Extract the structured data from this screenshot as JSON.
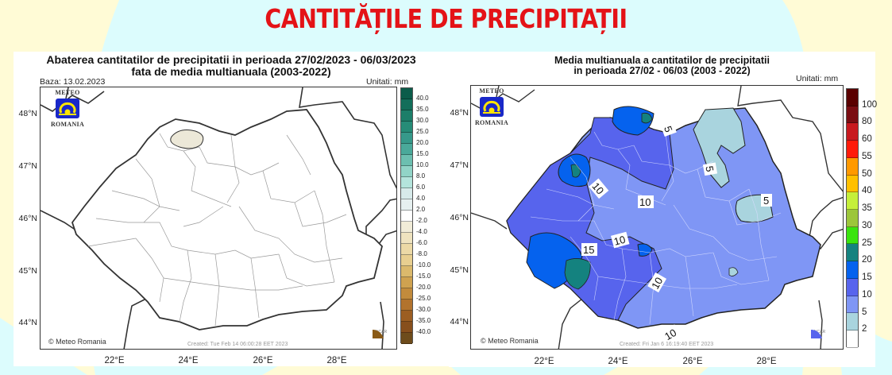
{
  "page": {
    "title": "CANTITĂȚILE DE PRECIPITAȚII",
    "colors": {
      "title": "#e41317",
      "background_cream": "#fffbd6",
      "background_cyan": "#dcfcfd"
    }
  },
  "left_map": {
    "title_line1": "Abaterea cantitatilor de precipitatii in perioada 27/02/2023 - 06/03/2023",
    "title_line2": "fata de media multianuala (2003-2022)",
    "base_label": "Baza: 13.02.2023",
    "units": "Unitati: mm",
    "logo_top": "METEO",
    "logo_bottom": "ROMANIA",
    "copyright": "© Meteo Romania",
    "created": "Created: Tue Feb 14 06:00:28 EET 2023",
    "ncar": "NCAR",
    "lat_labels": [
      "48°N",
      "47°N",
      "46°N",
      "45°N",
      "44°N"
    ],
    "lon_labels": [
      "22°E",
      "24°E",
      "26°E",
      "28°E"
    ],
    "colorbar": {
      "labels": [
        "40.0",
        "35.0",
        "30.0",
        "25.0",
        "20.0",
        "15.0",
        "10.0",
        "8.0",
        "6.0",
        "4.0",
        "2.0",
        "-2.0",
        "-4.0",
        "-6.0",
        "-8.0",
        "-10.0",
        "-15.0",
        "-20.0",
        "-25.0",
        "-30.0",
        "-35.0",
        "-40.0"
      ],
      "colors": [
        "#0b5c4a",
        "#136e5a",
        "#1c7e69",
        "#268c77",
        "#36998a",
        "#4aa99a",
        "#6cbfb0",
        "#91d4c7",
        "#b4e4dc",
        "#d7eaea",
        "#e6f0f0",
        "#ffffff",
        "#f1ecd8",
        "#efe3bf",
        "#ecd9a6",
        "#e8cf90",
        "#dbb96c",
        "#cfa250",
        "#c28b3c",
        "#b2732d",
        "#9c5e22",
        "#874f1c",
        "#6e4c1b"
      ]
    }
  },
  "right_map": {
    "title_line1": "Media multianuala a cantitatilor de precipitatii",
    "title_line2": "in perioada 27/02 - 06/03 (2003 - 2022)",
    "units": "Unitati: mm",
    "logo_top": "METEO",
    "logo_bottom": "ROMANIA",
    "copyright": "© Meteo Romania",
    "created": "Created: Fri Jan  6 16:19:40 EET 2023",
    "ncar": "NCAR",
    "lat_labels": [
      "48°N",
      "47°N",
      "46°N",
      "45°N",
      "44°N"
    ],
    "lon_labels": [
      "22°E",
      "24°E",
      "26°E",
      "28°E"
    ],
    "contour_labels": [
      "5",
      "5",
      "5",
      "10",
      "10",
      "10",
      "15",
      "10",
      "10"
    ],
    "colorbar": {
      "labels": [
        "100",
        "80",
        "60",
        "55",
        "50",
        "40",
        "35",
        "30",
        "25",
        "20",
        "15",
        "10",
        "5",
        "2"
      ],
      "colors": [
        "#5a0000",
        "#7a0d12",
        "#c8191f",
        "#ff1a0a",
        "#ff9900",
        "#ffc000",
        "#c5ef3a",
        "#9cc63b",
        "#3ae40e",
        "#14827f",
        "#0562ee",
        "#5764ed",
        "#7f96f5",
        "#a9d4de",
        "#ffffff"
      ]
    }
  }
}
